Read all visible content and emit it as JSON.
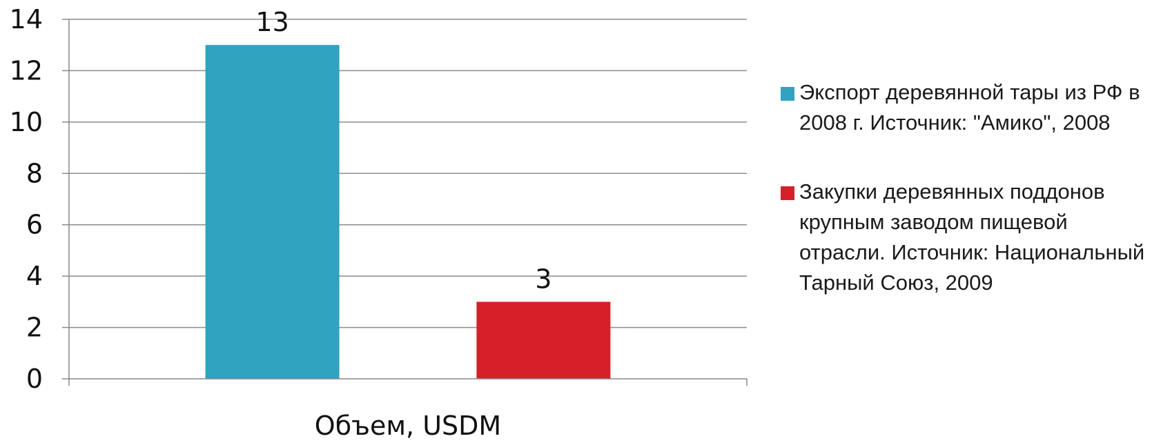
{
  "chart_data": {
    "type": "bar",
    "xlabel": "Объем, USDM",
    "ylim": [
      0,
      14
    ],
    "y_ticks": [
      "0",
      "2",
      "4",
      "6",
      "8",
      "10",
      "12",
      "14"
    ],
    "grid": true,
    "legend_position": "right",
    "series": [
      {
        "name": "Экспорт деревянной тары из РФ в 2008 г. Источник: \"Амико\", 2008",
        "value": 13,
        "value_label": "13",
        "color": "#2fa3bf"
      },
      {
        "name": "Закупки деревянных поддонов крупным заводом пищевой отрасли. Источник: Национальный Тарный Союз, 2009",
        "value": 3,
        "value_label": "3",
        "color": "#d71f2a"
      }
    ]
  }
}
